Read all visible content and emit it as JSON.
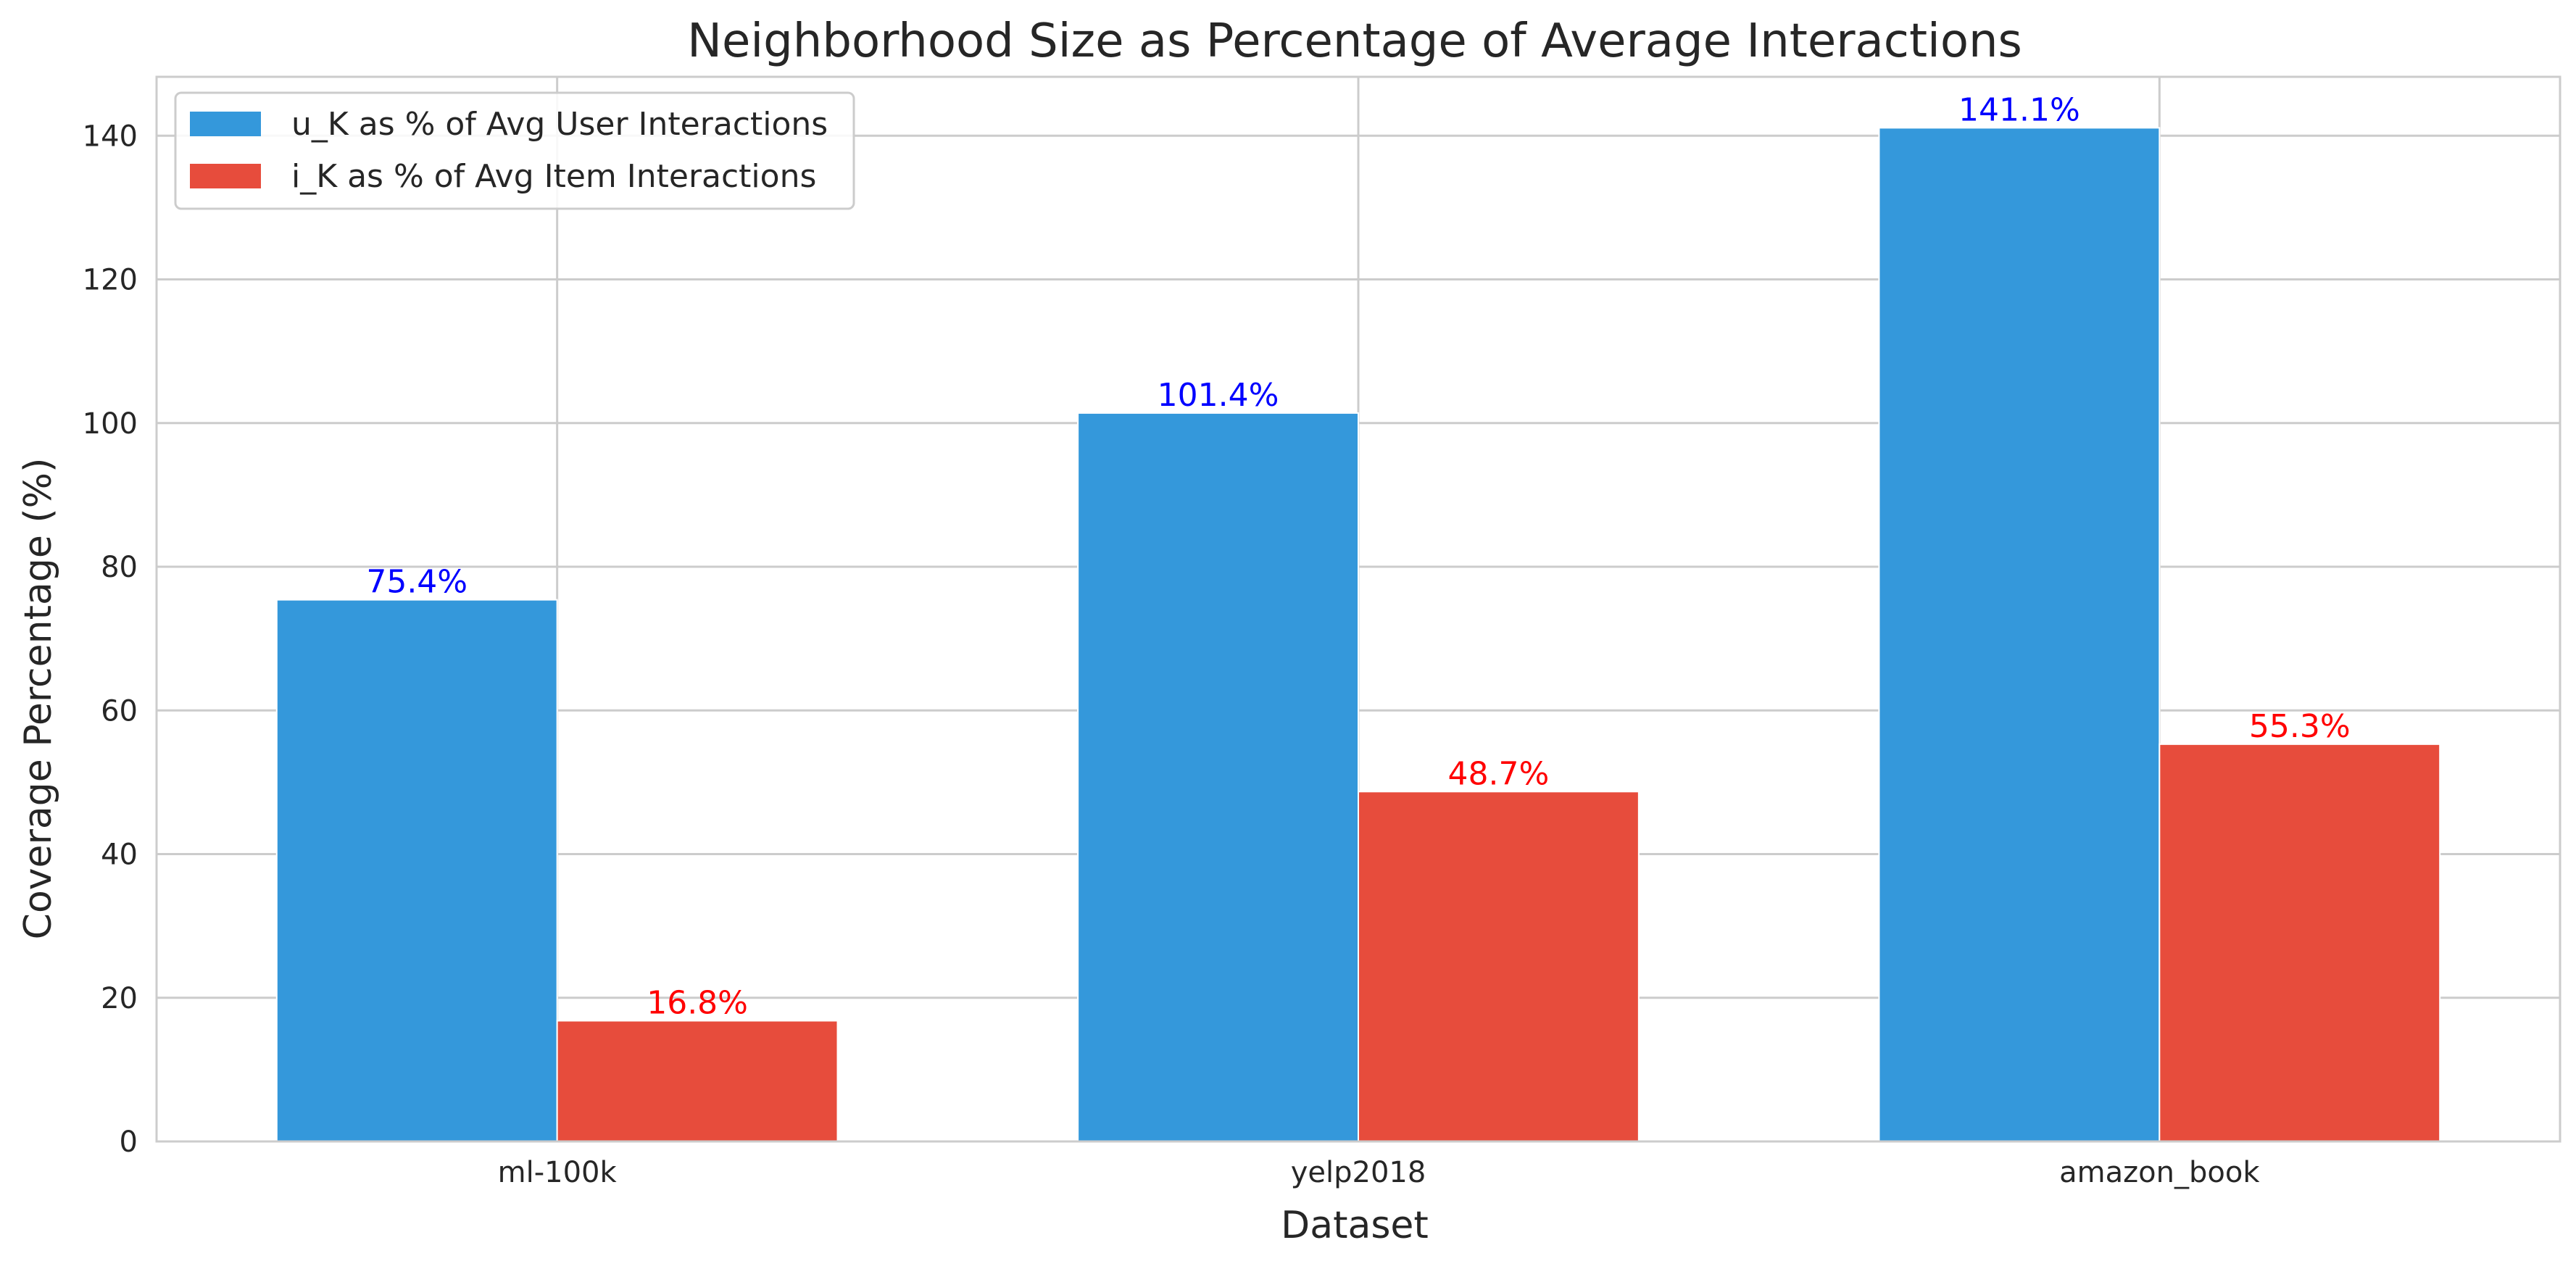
{
  "chart_data": {
    "type": "bar",
    "title": "Neighborhood Size as Percentage of Average Interactions",
    "xlabel": "Dataset",
    "ylabel": "Coverage Percentage (%)",
    "categories": [
      "ml-100k",
      "yelp2018",
      "amazon_book"
    ],
    "series": [
      {
        "name": "u_K as % of Avg User Interactions",
        "values": [
          75.4,
          101.4,
          141.1
        ],
        "labels": [
          "75.4%",
          "101.4%",
          "141.1%"
        ],
        "color": "#3498db",
        "label_color": "#0000ff"
      },
      {
        "name": "i_K as % of Avg Item Interactions",
        "values": [
          16.8,
          48.7,
          55.3
        ],
        "labels": [
          "16.8%",
          "48.7%",
          "55.3%"
        ],
        "color": "#e74c3c",
        "label_color": "#ff0000"
      }
    ],
    "ylim": [
      0,
      148.2
    ],
    "yticks": [
      0,
      20,
      40,
      60,
      80,
      100,
      120,
      140
    ],
    "grid": true,
    "legend_position": "top-left"
  }
}
